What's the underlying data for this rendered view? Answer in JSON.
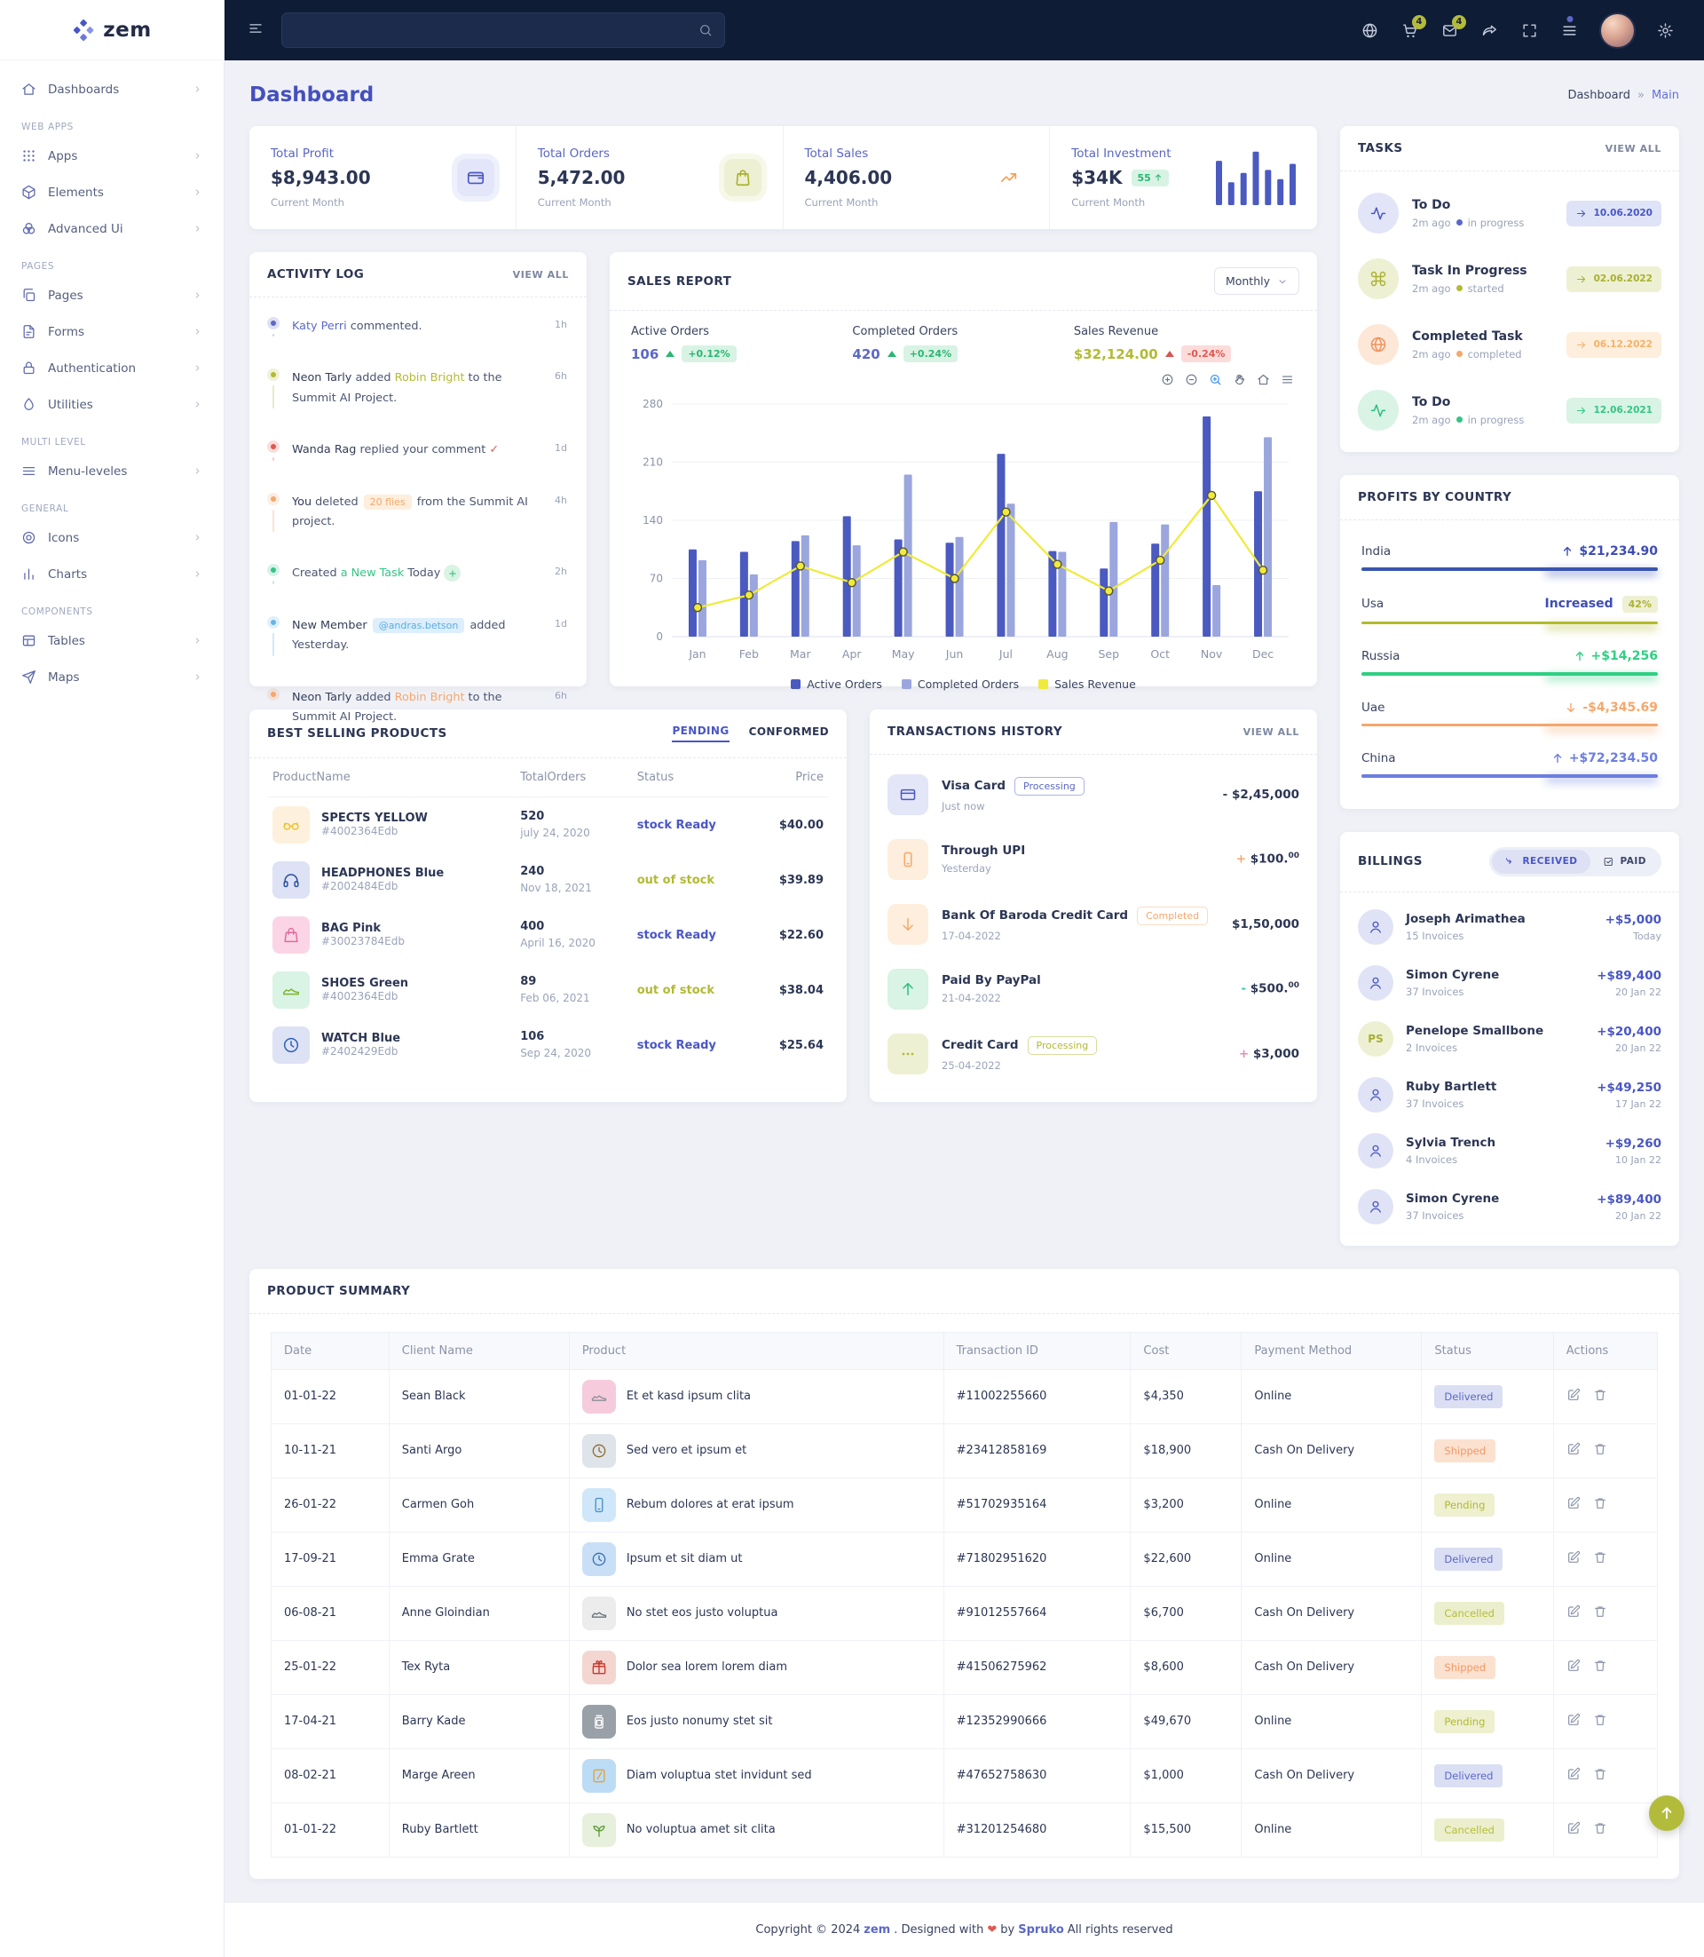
{
  "app": {
    "logo": "zem"
  },
  "colors": {
    "primary": "#4956c5",
    "indigo": "#5b68c8",
    "olive": "#b2ba33",
    "orange": "#f5a76c",
    "red": "#e0584f",
    "green": "#35c585",
    "sky": "#64b5e6",
    "yellow": "#f0ea3c",
    "bar_dark": "#4a5ac0",
    "bar_light": "#9aa6dd",
    "topbar_bg": "#0f1c36",
    "page_bg": "#eff1f7"
  },
  "topbar": {
    "search_placeholder": "",
    "search_value": "",
    "icons": [
      {
        "name": "globe"
      },
      {
        "name": "cart",
        "badge": "4"
      },
      {
        "name": "mail",
        "badge": "4"
      },
      {
        "name": "share"
      },
      {
        "name": "expand"
      },
      {
        "name": "list",
        "dot": true
      },
      {
        "name": "avatar"
      },
      {
        "name": "gear"
      }
    ]
  },
  "sidebar": {
    "sections": [
      {
        "heading": "",
        "items": [
          {
            "icon": "home",
            "label": "Dashboards"
          }
        ]
      },
      {
        "heading": "WEB APPS",
        "items": [
          {
            "icon": "apps",
            "label": "Apps"
          },
          {
            "icon": "elements",
            "label": "Elements"
          },
          {
            "icon": "advanced",
            "label": "Advanced Ui"
          }
        ]
      },
      {
        "heading": "PAGES",
        "items": [
          {
            "icon": "pages",
            "label": "Pages"
          },
          {
            "icon": "forms",
            "label": "Forms"
          },
          {
            "icon": "auth",
            "label": "Authentication"
          },
          {
            "icon": "utilities",
            "label": "Utilities"
          }
        ]
      },
      {
        "heading": "MULTI LEVEL",
        "items": [
          {
            "icon": "menu",
            "label": "Menu-leveles"
          }
        ]
      },
      {
        "heading": "GENERAL",
        "items": [
          {
            "icon": "icons",
            "label": "Icons"
          },
          {
            "icon": "charts",
            "label": "Charts"
          }
        ]
      },
      {
        "heading": "COMPONENTS",
        "items": [
          {
            "icon": "tables",
            "label": "Tables"
          },
          {
            "icon": "maps",
            "label": "Maps"
          }
        ]
      }
    ]
  },
  "page": {
    "title": "Dashboard",
    "breadcrumb": [
      "Dashboard",
      "Main"
    ]
  },
  "stats": [
    {
      "label": "Total Profit",
      "value": "$8,943.00",
      "sub": "Current Month",
      "icon": "wallet",
      "accent": "indigo"
    },
    {
      "label": "Total Orders",
      "value": "5,472.00",
      "sub": "Current Month",
      "icon": "bag",
      "accent": "olive"
    },
    {
      "label": "Total Sales",
      "value": "4,406.00",
      "sub": "Current Month",
      "icon": "trend",
      "accent": "orange"
    },
    {
      "label": "Total Investment",
      "value": "$34K",
      "badge": "55",
      "sub": "Current Month",
      "minibars": [
        58,
        30,
        42,
        70,
        46,
        34,
        54
      ]
    }
  ],
  "activity": {
    "title": "ACTIVITY LOG",
    "view_all": "VIEW ALL",
    "items": [
      {
        "dot": "indigo",
        "time": "1h",
        "segments": [
          {
            "t": "Katy Perri",
            "c": "indigo"
          },
          {
            "t": " commented."
          }
        ]
      },
      {
        "dot": "olive",
        "time": "6h",
        "segments": [
          {
            "t": "Neon Tarly",
            "c": "dark"
          },
          {
            "t": " added "
          },
          {
            "t": "Robin Bright",
            "c": "olive"
          },
          {
            "t": " to the Summit AI Project."
          }
        ]
      },
      {
        "dot": "red",
        "time": "1d",
        "segments": [
          {
            "t": "Wanda Rag",
            "c": "dark"
          },
          {
            "t": " replied your comment "
          },
          {
            "t": "✓",
            "c": "red"
          }
        ]
      },
      {
        "dot": "orange",
        "time": "4h",
        "segments": [
          {
            "t": "You",
            "c": "dark"
          },
          {
            "t": " deleted "
          },
          {
            "t": "20 flies",
            "badge": "orange"
          },
          {
            "t": " from the Summit AI project."
          }
        ]
      },
      {
        "dot": "green",
        "time": "2h",
        "segments": [
          {
            "t": "Created "
          },
          {
            "t": "a New Task",
            "c": "green"
          },
          {
            "t": " Today "
          },
          {
            "plus_circle": true
          }
        ]
      },
      {
        "dot": "sky",
        "time": "1d",
        "segments": [
          {
            "t": "New Member ",
            "c": "dark"
          },
          {
            "t": "@andras.betson",
            "badge": "sky"
          },
          {
            "t": " added Yesterday."
          }
        ]
      },
      {
        "dot": "orange",
        "time": "6h",
        "segments": [
          {
            "t": "Neon Tarly",
            "c": "dark"
          },
          {
            "t": " added "
          },
          {
            "t": "Robin Bright",
            "c": "orange"
          },
          {
            "t": " to the Summit AI Project."
          }
        ]
      }
    ]
  },
  "sales_report": {
    "title": "SALES REPORT",
    "range": "Monthly",
    "stats": [
      {
        "label": "Active Orders",
        "value": "106",
        "delta": "+0.12%",
        "dir": "up"
      },
      {
        "label": "Completed Orders",
        "value": "420",
        "delta": "+0.24%",
        "dir": "up"
      },
      {
        "label": "Sales Revenue",
        "value": "$32,124.00",
        "delta": "-0.24%",
        "dir": "down",
        "olive": true
      }
    ],
    "toolbar": [
      "zoom-in-circle",
      "zoom-out-circle",
      "zoom-select",
      "pan-hand",
      "home-reset",
      "menu-export"
    ]
  },
  "chart_data": {
    "type": "bar",
    "title": "SALES REPORT",
    "xlabel": "",
    "ylabel": "",
    "ylim": [
      0,
      280
    ],
    "yticks": [
      0,
      70,
      140,
      210,
      280
    ],
    "grid": true,
    "legend_position": "bottom",
    "categories": [
      "Jan",
      "Feb",
      "Mar",
      "Apr",
      "May",
      "Jun",
      "Jul",
      "Aug",
      "Sep",
      "Oct",
      "Nov",
      "Dec"
    ],
    "series": [
      {
        "name": "Active Orders",
        "type": "bar",
        "color": "#4a5ac0",
        "values": [
          105,
          102,
          115,
          145,
          117,
          113,
          220,
          103,
          82,
          112,
          265,
          175
        ]
      },
      {
        "name": "Completed Orders",
        "type": "bar",
        "color": "#9aa6dd",
        "values": [
          92,
          75,
          122,
          110,
          195,
          120,
          160,
          102,
          138,
          135,
          62,
          240
        ]
      },
      {
        "name": "Sales Revenue",
        "type": "line",
        "color": "#f0ea3c",
        "values": [
          35,
          50,
          85,
          65,
          102,
          70,
          150,
          87,
          55,
          92,
          170,
          80
        ]
      }
    ],
    "mini_investment_bars": [
      58,
      30,
      42,
      70,
      46,
      34,
      54
    ]
  },
  "tasks": {
    "title": "TASKS",
    "view_all": "VIEW ALL",
    "items": [
      {
        "icon": "activity",
        "accent": "indigo",
        "title": "To Do",
        "time": "2m ago",
        "status": "in progress",
        "date": "10.06.2020"
      },
      {
        "icon": "command",
        "accent": "olive",
        "title": "Task In Progress",
        "time": "2m ago",
        "status": "started",
        "date": "02.06.2022"
      },
      {
        "icon": "globe",
        "accent": "orange",
        "title": "Completed Task",
        "time": "2m ago",
        "status": "completed",
        "date": "06.12.2022"
      },
      {
        "icon": "activity",
        "accent": "green",
        "title": "To Do",
        "time": "2m ago",
        "status": "in progress",
        "date": "12.06.2021"
      }
    ]
  },
  "profits": {
    "title": "PROFITS BY COUNTRY",
    "rows": [
      {
        "country": "India",
        "value": "$21,234.90",
        "dir": "up",
        "accent": "#3a55b0",
        "value_color": "#3d4db4"
      },
      {
        "country": "Usa",
        "value": "Increased",
        "badge": "42%",
        "accent": "#b2ba2c",
        "value_color": "#3d4db4"
      },
      {
        "country": "Russia",
        "value": "+$14,256",
        "dir": "up",
        "accent": "#2fcf82",
        "value_color": "#2fcf82"
      },
      {
        "country": "Uae",
        "value": "-$4,345.69",
        "dir": "down",
        "accent": "#f5a76c",
        "value_color": "#f5a76c"
      },
      {
        "country": "China",
        "value": "+$72,234.50",
        "dir": "up",
        "accent": "#6c7ee0",
        "value_color": "#6c7ee0"
      }
    ]
  },
  "best_selling": {
    "title": "BEST SELLING PRODUCTS",
    "tabs": [
      "PENDING",
      "CONFORMED"
    ],
    "active_tab": "PENDING",
    "columns": [
      "ProductName",
      "TotalOrders",
      "Status",
      "Price"
    ],
    "rows": [
      {
        "name": "SPECTS YELLOW",
        "sku": "#4002364Edb",
        "orders": "520",
        "date": "july 24, 2020",
        "status": "stock Ready",
        "status_color": "indigo",
        "price": "$40.00",
        "thumb": "glasses",
        "thumb_bg": "#fdf1dd",
        "thumb_color": "#f0c030"
      },
      {
        "name": "HEADPHONES Blue",
        "sku": "#2002484Edb",
        "orders": "240",
        "date": "Nov 18, 2021",
        "status": "out of stock",
        "status_color": "olive",
        "price": "$39.89",
        "thumb": "headphones",
        "thumb_bg": "#dde2f5",
        "thumb_color": "#2b4f9e"
      },
      {
        "name": "BAG Pink",
        "sku": "#30023784Edb",
        "orders": "400",
        "date": "April 16, 2020",
        "status": "stock Ready",
        "status_color": "indigo",
        "price": "$22.60",
        "thumb": "bagp",
        "thumb_bg": "#fbd5e5",
        "thumb_color": "#e06a9f"
      },
      {
        "name": "SHOES Green",
        "sku": "#4002364Edb",
        "orders": "89",
        "date": "Feb 06, 2021",
        "status": "out of stock",
        "status_color": "olive",
        "price": "$38.04",
        "thumb": "shoe",
        "thumb_bg": "#d9f3e4",
        "thumb_color": "#7bb52a"
      },
      {
        "name": "WATCH Blue",
        "sku": "#2402429Edb",
        "orders": "106",
        "date": "Sep 24, 2020",
        "status": "stock Ready",
        "status_color": "indigo",
        "price": "$25.64",
        "thumb": "clock",
        "thumb_bg": "#dde2f5",
        "thumb_color": "#2b62b8"
      }
    ]
  },
  "transactions": {
    "title": "TRANSACTIONS HISTORY",
    "view_all": "VIEW ALL",
    "rows": [
      {
        "icon": "credit-card",
        "accent": "indigo",
        "title": "Visa Card",
        "badge": "Processing",
        "badge_color": "indigo",
        "sub": "Just now",
        "sign": "- ",
        "sign_color": "#39435f",
        "value": "$2,45,000",
        "sup": ""
      },
      {
        "icon": "smartphone",
        "accent": "orange",
        "title": "Through UPI",
        "badge": "",
        "sub": "Yesterday",
        "sign": "+ ",
        "sign_color": "#f5a76c",
        "value": "$100.",
        "sup": "00"
      },
      {
        "icon": "arrow-down",
        "accent": "orange",
        "title": "Bank Of Baroda Credit Card",
        "badge": "Completed",
        "badge_color": "orange",
        "sub": "17-04-2022",
        "sign": "",
        "sign_color": "",
        "value": "$1,50,000",
        "sup": ""
      },
      {
        "icon": "arrow-up",
        "accent": "green",
        "title": "Paid By PayPal",
        "badge": "",
        "sub": "21-04-2022",
        "sign": "- ",
        "sign_color": "#35c5a5",
        "value": "$500.",
        "sup": "00"
      },
      {
        "icon": "more",
        "accent": "olive",
        "title": "Credit Card",
        "badge": "Processing",
        "badge_color": "olive",
        "sub": "25-04-2022",
        "sign": "+ ",
        "sign_color": "#e58bb1",
        "value": "$3,000",
        "sup": ""
      }
    ]
  },
  "billings": {
    "title": "BILLINGS",
    "tabs": [
      {
        "label": "RECEIVED",
        "icon": "received",
        "active": true
      },
      {
        "label": "PAID",
        "icon": "paid",
        "active": false
      }
    ],
    "rows": [
      {
        "name": "Joseph Arimathea",
        "sub": "15 Invoices",
        "amount": "+$5,000",
        "date": "Today",
        "avatar": "icon"
      },
      {
        "name": "Simon Cyrene",
        "sub": "37 Invoices",
        "amount": "+$89,400",
        "date": "20 Jan 22",
        "avatar": "icon"
      },
      {
        "name": "Penelope Smallbone",
        "sub": "2 Invoices",
        "amount": "+$20,400",
        "date": "20 Jan 22",
        "avatar": "PS"
      },
      {
        "name": "Ruby Bartlett",
        "sub": "37 Invoices",
        "amount": "+$49,250",
        "date": "17 Jan 22",
        "avatar": "icon"
      },
      {
        "name": "Sylvia Trench",
        "sub": "4 Invoices",
        "amount": "+$9,260",
        "date": "10 Jan 22",
        "avatar": "icon"
      },
      {
        "name": "Simon Cyrene",
        "sub": "37 Invoices",
        "amount": "+$89,400",
        "date": "20 Jan 22",
        "avatar": "icon"
      }
    ]
  },
  "summary": {
    "title": "PRODUCT SUMMARY",
    "columns": [
      "Date",
      "Client Name",
      "Product",
      "Transaction ID",
      "Cost",
      "Payment Method",
      "Status",
      "Actions"
    ],
    "rows": [
      {
        "date": "01-01-22",
        "client": "Sean Black",
        "product": "Et et kasd ipsum clita",
        "thumb": "shoe",
        "thumb_bg": "#f6cbdc",
        "thumb_color": "#8a8f98",
        "txn": "#11002255660",
        "cost": "$4,350",
        "payment": "Online",
        "status": "Delivered"
      },
      {
        "date": "10-11-21",
        "client": "Santi Argo",
        "product": "Sed vero et ipsum et",
        "thumb": "clock",
        "thumb_bg": "#dfe3ea",
        "thumb_color": "#8a6d2f",
        "txn": "#23412858169",
        "cost": "$18,900",
        "payment": "Cash On Delivery",
        "status": "Shipped"
      },
      {
        "date": "26-01-22",
        "client": "Carmen Goh",
        "product": "Rebum dolores at erat ipsum",
        "thumb": "smartphone",
        "thumb_bg": "#cfe7f8",
        "thumb_color": "#4a90c2",
        "txn": "#51702935164",
        "cost": "$3,200",
        "payment": "Online",
        "status": "Pending"
      },
      {
        "date": "17-09-21",
        "client": "Emma Grate",
        "product": "Ipsum et sit diam ut",
        "thumb": "clock",
        "thumb_bg": "#c9dff5",
        "thumb_color": "#3c6fb0",
        "txn": "#71802951620",
        "cost": "$22,600",
        "payment": "Online",
        "status": "Delivered"
      },
      {
        "date": "06-08-21",
        "client": "Anne Gloindian",
        "product": "No stet eos justo voluptua",
        "thumb": "shoe",
        "thumb_bg": "#ececec",
        "thumb_color": "#6a6f78",
        "txn": "#91012557664",
        "cost": "$6,700",
        "payment": "Cash On Delivery",
        "status": "Cancelled"
      },
      {
        "date": "25-01-22",
        "client": "Tex Ryta",
        "product": "Dolor sea lorem lorem diam",
        "thumb": "gift",
        "thumb_bg": "#f4d6d0",
        "thumb_color": "#c8372d",
        "txn": "#41506275962",
        "cost": "$8,600",
        "payment": "Cash On Delivery",
        "status": "Shipped"
      },
      {
        "date": "17-04-21",
        "client": "Barry Kade",
        "product": "Eos justo nonumy stet sit",
        "thumb": "jar",
        "thumb_bg": "#9aa0a8",
        "thumb_color": "#ffffff",
        "txn": "#12352990666",
        "cost": "$49,670",
        "payment": "Online",
        "status": "Pending"
      },
      {
        "date": "08-02-21",
        "client": "Marge Areen",
        "product": "Diam voluptua stet invidunt sed",
        "thumb": "clipboard",
        "thumb_bg": "#bcdcf5",
        "thumb_color": "#e0a23f",
        "txn": "#47652758630",
        "cost": "$1,000",
        "payment": "Cash On Delivery",
        "status": "Delivered"
      },
      {
        "date": "01-01-22",
        "client": "Ruby Bartlett",
        "product": "No voluptua amet sit clita",
        "thumb": "plant",
        "thumb_bg": "#e7f0dc",
        "thumb_color": "#5f9e3e",
        "txn": "#31201254680",
        "cost": "$15,500",
        "payment": "Online",
        "status": "Cancelled"
      }
    ]
  },
  "footer": {
    "parts": [
      "Copyright © 2024 ",
      "zem",
      ". Designed with ",
      "❤",
      " by ",
      "Spruko",
      " All rights reserved"
    ]
  }
}
